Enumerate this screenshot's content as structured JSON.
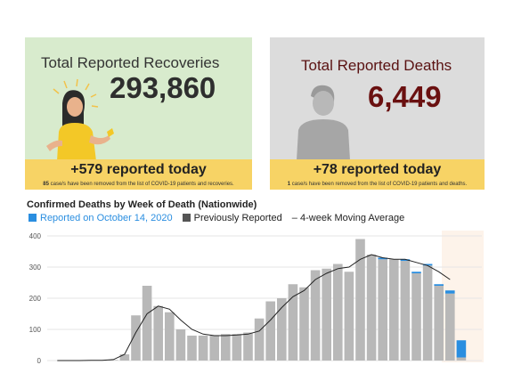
{
  "recoveries": {
    "title": "Total Reported Recoveries",
    "total": "293,860",
    "today": "+579 reported today",
    "removed_count": "85",
    "removed_text": " case/s have been removed from the list of COVID-19 patients and recoveries."
  },
  "deaths": {
    "title": "Total Reported Deaths",
    "total": "6,449",
    "today": "+78 reported today",
    "removed_count": "1",
    "removed_text": " case/s have been removed from the list of COVID-19 patients and deaths."
  },
  "chart_data": {
    "type": "bar",
    "title": "Confirmed Deaths by Week of Death (Nationwide)",
    "legend": [
      {
        "name": "Reported on October 14, 2020",
        "color": "#2a8ee0"
      },
      {
        "name": "Previously Reported",
        "color": "#555555"
      },
      {
        "name": "4-week Moving Average",
        "color": "#222222"
      }
    ],
    "ylim": [
      0,
      400
    ],
    "yticks": [
      0,
      100,
      200,
      300,
      400
    ],
    "series": [
      {
        "name": "Previously Reported",
        "color": "#b8b8b8",
        "values": [
          0,
          0,
          0,
          1,
          1,
          2,
          20,
          145,
          240,
          175,
          155,
          100,
          80,
          80,
          80,
          85,
          85,
          90,
          135,
          190,
          200,
          245,
          235,
          290,
          295,
          310,
          285,
          390,
          340,
          325,
          325,
          320,
          280,
          305,
          240,
          215,
          10
        ]
      },
      {
        "name": "Reported on October 14, 2020",
        "color": "#2a8ee0",
        "values": [
          0,
          0,
          0,
          0,
          0,
          0,
          0,
          0,
          0,
          0,
          0,
          0,
          0,
          0,
          0,
          0,
          0,
          0,
          0,
          0,
          0,
          0,
          0,
          0,
          0,
          0,
          0,
          0,
          0,
          5,
          0,
          5,
          5,
          5,
          5,
          10,
          55
        ]
      },
      {
        "name": "4-week Moving Average",
        "color": "#222222",
        "values": [
          0,
          0,
          0,
          1,
          1,
          3,
          20,
          90,
          150,
          175,
          165,
          130,
          100,
          85,
          80,
          80,
          82,
          85,
          95,
          130,
          170,
          205,
          225,
          260,
          280,
          295,
          300,
          325,
          340,
          330,
          325,
          325,
          315,
          305,
          285,
          260,
          null
        ]
      }
    ]
  }
}
